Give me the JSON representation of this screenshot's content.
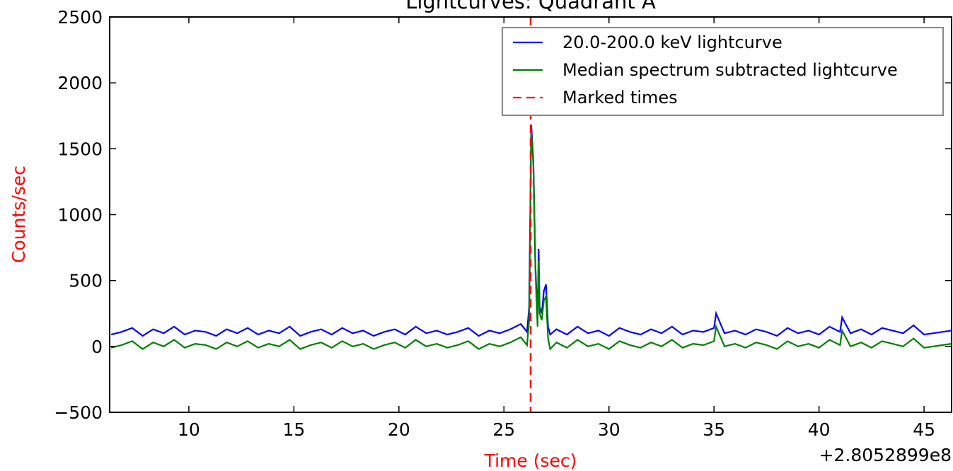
{
  "chart_data": {
    "type": "line",
    "title": "Lightcurves: Quadrant A",
    "x_label": "Time (sec)",
    "y_label": "Counts/sec",
    "x_offset_label": "+2.8052899e8",
    "x": [
      6.3,
      6.8,
      7.3,
      7.8,
      8.3,
      8.8,
      9.3,
      9.8,
      10.3,
      10.8,
      11.3,
      11.8,
      12.3,
      12.8,
      13.3,
      13.8,
      14.3,
      14.8,
      15.3,
      15.8,
      16.3,
      16.8,
      17.3,
      17.8,
      18.3,
      18.8,
      19.3,
      19.8,
      20.3,
      20.8,
      21.3,
      21.8,
      22.3,
      22.8,
      23.3,
      23.8,
      24.3,
      24.8,
      25.3,
      25.8,
      26.1,
      26.2,
      26.3,
      26.35,
      26.4,
      26.5,
      26.6,
      26.65,
      26.7,
      26.8,
      26.9,
      27.0,
      27.1,
      27.2,
      27.5,
      28.0,
      28.5,
      29.0,
      29.5,
      30.0,
      30.5,
      31.0,
      31.5,
      32.0,
      32.5,
      33.0,
      33.5,
      34.0,
      34.5,
      35.0,
      35.1,
      35.5,
      36.0,
      36.5,
      37.0,
      37.5,
      38.0,
      38.5,
      39.0,
      39.5,
      40.0,
      40.5,
      41.0,
      41.1,
      41.5,
      42.0,
      42.5,
      43.0,
      43.5,
      44.0,
      44.5,
      45.0,
      46.3
    ],
    "series": [
      {
        "name": "20.0-200.0 keV lightcurve",
        "color": "#0000ff",
        "values": [
          90,
          110,
          140,
          80,
          130,
          100,
          150,
          90,
          120,
          110,
          80,
          130,
          100,
          140,
          90,
          120,
          100,
          150,
          80,
          110,
          130,
          90,
          140,
          100,
          120,
          80,
          110,
          130,
          90,
          150,
          100,
          120,
          90,
          110,
          140,
          80,
          120,
          100,
          130,
          170,
          110,
          300,
          1680,
          1550,
          1400,
          600,
          200,
          740,
          300,
          250,
          420,
          470,
          150,
          90,
          130,
          90,
          150,
          100,
          120,
          80,
          140,
          110,
          90,
          130,
          100,
          150,
          90,
          120,
          110,
          140,
          250,
          100,
          120,
          90,
          130,
          110,
          80,
          140,
          100,
          120,
          90,
          150,
          110,
          220,
          100,
          130,
          90,
          140,
          120,
          100,
          160,
          90,
          120
        ]
      },
      {
        "name": "Median spectrum subtracted lightcurve",
        "color": "#008000",
        "values": [
          -10,
          10,
          40,
          -20,
          30,
          0,
          50,
          -10,
          20,
          10,
          -20,
          30,
          0,
          40,
          -10,
          20,
          0,
          50,
          -20,
          10,
          30,
          -10,
          40,
          0,
          20,
          -20,
          10,
          30,
          -10,
          50,
          0,
          20,
          -10,
          10,
          40,
          -20,
          20,
          0,
          30,
          70,
          10,
          200,
          1640,
          1500,
          1380,
          560,
          150,
          650,
          250,
          200,
          350,
          380,
          60,
          -20,
          30,
          -10,
          50,
          0,
          20,
          -20,
          40,
          10,
          -10,
          30,
          0,
          50,
          -10,
          20,
          10,
          40,
          150,
          0,
          20,
          -10,
          30,
          10,
          -20,
          40,
          0,
          20,
          -10,
          50,
          10,
          120,
          0,
          30,
          -10,
          40,
          20,
          0,
          60,
          -10,
          20
        ]
      }
    ],
    "marked_times": {
      "name": "Marked times",
      "color": "#ff0000",
      "values": [
        26.27
      ]
    },
    "xlim": [
      6.23,
      46.31
    ],
    "ylim": [
      -500,
      2500
    ],
    "xticks": [
      10,
      15,
      20,
      25,
      30,
      35,
      40,
      45
    ],
    "yticks": [
      {
        "value": -500,
        "label": "−500"
      },
      0,
      500,
      1000,
      1500,
      2000,
      2500
    ],
    "legend": "upper right",
    "label_color": "#ff0000"
  }
}
